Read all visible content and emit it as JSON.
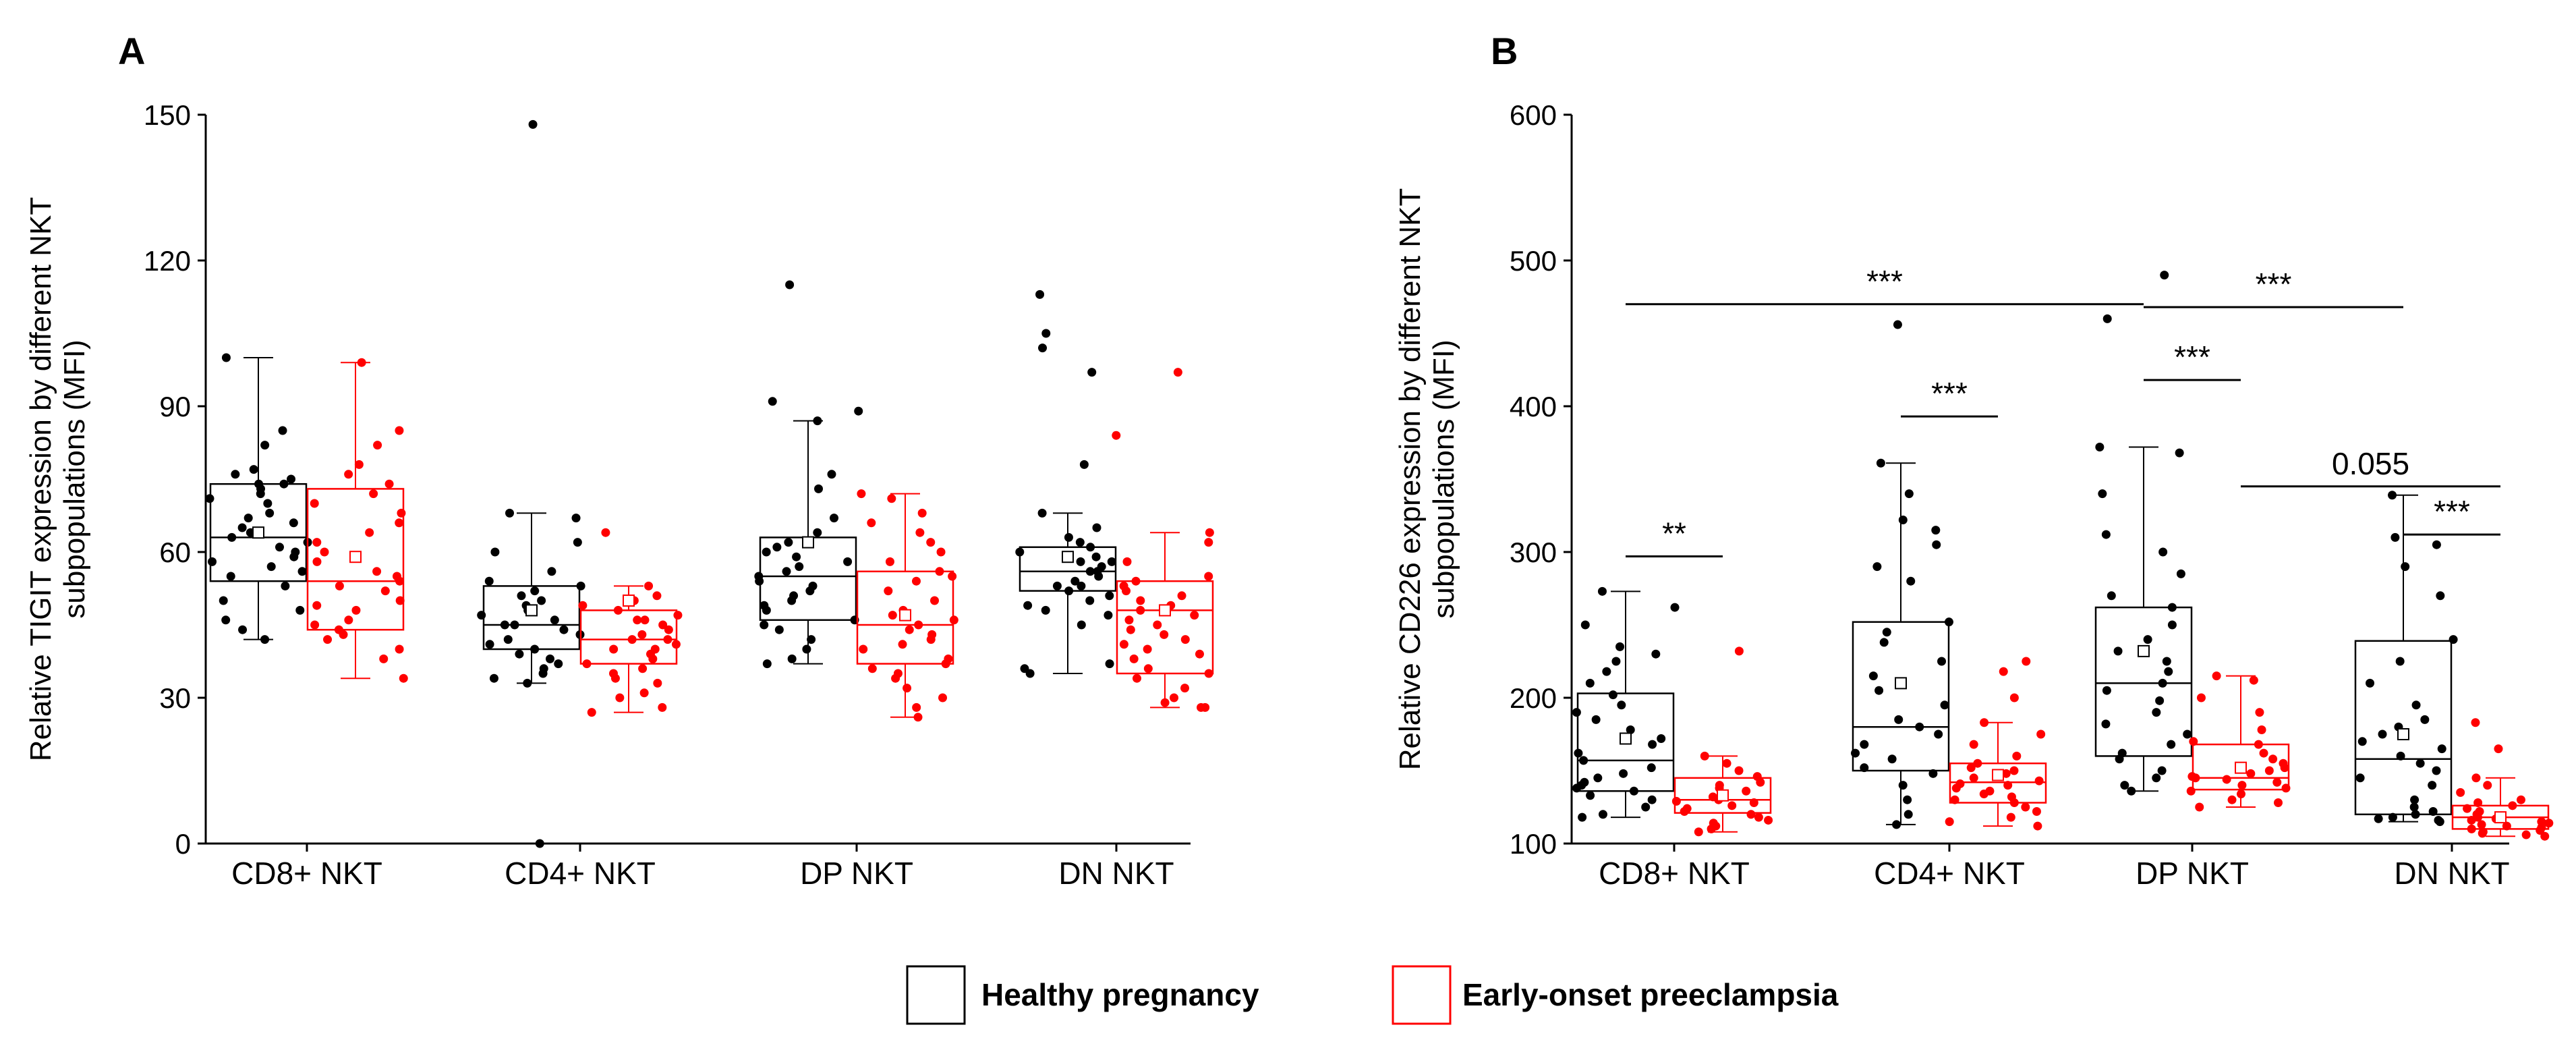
{
  "colors": {
    "healthy": "#000000",
    "preeclampsia": "#ff0000"
  },
  "legend": [
    {
      "label": "Healthy pregnancy",
      "color": "#000000"
    },
    {
      "label": "Early-onset preeclampsia",
      "color": "#ff0000"
    }
  ],
  "chart_data": [
    {
      "type": "box",
      "panel": "A",
      "ylabel": [
        "Relative TIGIT  expression by different NKT",
        "subpopulations (MFI)"
      ],
      "ylim": [
        0,
        150
      ],
      "yticks": [
        0,
        30,
        60,
        90,
        120,
        150
      ],
      "categories": [
        "CD8+ NKT",
        "CD4+ NKT",
        "DP NKT",
        "DN NKT"
      ],
      "series": [
        {
          "name": "Healthy pregnancy",
          "color": "#000000",
          "boxes": [
            {
              "min": 42,
              "q1": 54,
              "median": 63,
              "q3": 74,
              "max": 100,
              "mean": 64,
              "points": [
                100,
                85,
                82,
                77,
                76,
                75,
                74,
                74,
                73,
                72,
                71,
                70,
                68,
                67,
                66,
                65,
                64,
                63,
                62,
                61,
                60,
                59,
                58,
                57,
                56,
                55,
                53,
                50,
                48,
                46,
                44,
                42
              ]
            },
            {
              "min": 33,
              "q1": 40,
              "median": 45,
              "q3": 53,
              "max": 68,
              "mean": 48,
              "points": [
                148,
                68,
                67,
                62,
                60,
                56,
                54,
                53,
                52,
                51,
                50,
                49,
                48,
                47,
                46,
                45,
                45,
                44,
                43,
                42,
                41,
                40,
                39,
                38,
                37,
                36,
                35,
                34,
                33,
                0
              ]
            },
            {
              "min": 37,
              "q1": 46,
              "median": 55,
              "q3": 63,
              "max": 87,
              "mean": 62,
              "points": [
                115,
                91,
                89,
                87,
                76,
                73,
                67,
                64,
                62,
                61,
                60,
                59,
                58,
                57,
                56,
                55,
                54,
                53,
                52,
                51,
                50,
                49,
                48,
                46,
                45,
                44,
                42,
                40,
                38,
                37
              ]
            },
            {
              "min": 35,
              "q1": 52,
              "median": 56,
              "q3": 61,
              "max": 68,
              "mean": 59,
              "points": [
                113,
                105,
                102,
                97,
                78,
                68,
                65,
                63,
                62,
                61,
                60,
                59,
                58,
                58,
                57,
                56,
                56,
                55,
                54,
                53,
                53,
                52,
                51,
                50,
                49,
                48,
                47,
                45,
                37,
                36,
                35
              ]
            }
          ]
        },
        {
          "name": "Early-onset preeclampsia",
          "color": "#ff0000",
          "boxes": [
            {
              "min": 34,
              "q1": 44,
              "median": 54,
              "q3": 73,
              "max": 99,
              "mean": 59,
              "points": [
                99,
                85,
                82,
                78,
                76,
                74,
                72,
                70,
                68,
                66,
                64,
                62,
                60,
                58,
                56,
                55,
                54,
                53,
                52,
                50,
                49,
                48,
                46,
                45,
                44,
                43,
                42,
                40,
                38,
                34
              ]
            },
            {
              "min": 27,
              "q1": 37,
              "median": 42,
              "q3": 48,
              "max": 53,
              "mean": 50,
              "points": [
                64,
                53,
                51,
                50,
                49,
                48,
                47,
                46,
                46,
                45,
                44,
                43,
                42,
                42,
                41,
                40,
                40,
                39,
                38,
                37,
                36,
                35,
                34,
                33,
                31,
                30,
                28,
                27
              ]
            },
            {
              "min": 26,
              "q1": 37,
              "median": 45,
              "q3": 56,
              "max": 72,
              "mean": 47,
              "points": [
                72,
                71,
                68,
                66,
                64,
                62,
                60,
                58,
                56,
                55,
                54,
                52,
                50,
                48,
                47,
                46,
                45,
                44,
                43,
                42,
                41,
                40,
                38,
                37,
                36,
                35,
                34,
                32,
                30,
                28,
                26
              ]
            },
            {
              "min": 28,
              "q1": 35,
              "median": 48,
              "q3": 54,
              "max": 64,
              "mean": 48,
              "points": [
                97,
                84,
                64,
                62,
                58,
                55,
                54,
                53,
                52,
                51,
                50,
                49,
                48,
                47,
                46,
                45,
                44,
                43,
                42,
                41,
                40,
                39,
                38,
                36,
                35,
                34,
                32,
                30,
                29,
                28,
                28
              ]
            }
          ]
        }
      ],
      "annotations": []
    },
    {
      "type": "box",
      "panel": "B",
      "ylabel": [
        "Relative CD226 expression by different NKT",
        "subpopulations (MFI)"
      ],
      "ylim": [
        100,
        600
      ],
      "yticks": [
        100,
        200,
        300,
        400,
        500,
        600
      ],
      "categories": [
        "CD8+ NKT",
        "CD4+ NKT",
        "DP NKT",
        "DN NKT"
      ],
      "series": [
        {
          "name": "Healthy pregnancy",
          "color": "#000000",
          "boxes": [
            {
              "min": 118,
              "q1": 136,
              "median": 157,
              "q3": 203,
              "max": 273,
              "mean": 172,
              "points": [
                273,
                262,
                250,
                235,
                230,
                225,
                218,
                210,
                202,
                195,
                190,
                185,
                178,
                172,
                168,
                162,
                157,
                152,
                148,
                145,
                142,
                140,
                138,
                136,
                133,
                130,
                125,
                120,
                118
              ]
            },
            {
              "min": 113,
              "q1": 150,
              "median": 180,
              "q3": 252,
              "max": 361,
              "mean": 210,
              "points": [
                456,
                361,
                340,
                322,
                315,
                305,
                290,
                280,
                252,
                245,
                238,
                225,
                215,
                205,
                195,
                185,
                180,
                175,
                168,
                162,
                158,
                152,
                148,
                140,
                130,
                120,
                113
              ]
            },
            {
              "min": 136,
              "q1": 160,
              "median": 210,
              "q3": 262,
              "max": 372,
              "mean": 232,
              "points": [
                490,
                460,
                372,
                368,
                340,
                312,
                300,
                285,
                270,
                262,
                250,
                240,
                232,
                225,
                218,
                210,
                205,
                198,
                190,
                182,
                175,
                168,
                162,
                158,
                150,
                145,
                140,
                136
              ]
            },
            {
              "min": 115,
              "q1": 120,
              "median": 158,
              "q3": 239,
              "max": 339,
              "mean": 175,
              "points": [
                339,
                310,
                305,
                290,
                270,
                240,
                225,
                210,
                195,
                185,
                180,
                175,
                170,
                165,
                160,
                155,
                150,
                145,
                140,
                130,
                125,
                122,
                120,
                118,
                117,
                116,
                115
              ]
            }
          ]
        },
        {
          "name": "Early-onset preeclampsia",
          "color": "#ff0000",
          "boxes": [
            {
              "min": 108,
              "q1": 121,
              "median": 130,
              "q3": 145,
              "max": 160,
              "mean": 133,
              "points": [
                232,
                160,
                155,
                150,
                146,
                142,
                140,
                138,
                136,
                134,
                132,
                130,
                129,
                128,
                126,
                124,
                122,
                120,
                118,
                116,
                114,
                112,
                110,
                108
              ]
            },
            {
              "min": 112,
              "q1": 128,
              "median": 142,
              "q3": 155,
              "max": 183,
              "mean": 147,
              "points": [
                225,
                218,
                200,
                183,
                175,
                168,
                160,
                155,
                152,
                150,
                148,
                145,
                143,
                141,
                140,
                138,
                136,
                134,
                132,
                130,
                128,
                125,
                122,
                118,
                115,
                112
              ]
            },
            {
              "min": 125,
              "q1": 137,
              "median": 145,
              "q3": 168,
              "max": 215,
              "mean": 152,
              "points": [
                215,
                212,
                200,
                190,
                178,
                170,
                168,
                162,
                158,
                155,
                152,
                150,
                148,
                146,
                145,
                144,
                142,
                140,
                138,
                136,
                134,
                130,
                128,
                125
              ]
            },
            {
              "min": 105,
              "q1": 110,
              "median": 118,
              "q3": 126,
              "max": 145,
              "mean": 118,
              "points": [
                183,
                165,
                145,
                140,
                135,
                130,
                128,
                126,
                124,
                122,
                120,
                118,
                117,
                116,
                115,
                114,
                113,
                112,
                111,
                110,
                109,
                108,
                107,
                106,
                105
              ]
            }
          ]
        }
      ],
      "annotations": [
        {
          "label": "***",
          "from": 0,
          "to": 2,
          "level": 470
        },
        {
          "label": "***",
          "from": 2,
          "to": 3,
          "level": 468
        },
        {
          "label": "***",
          "from": 2,
          "to": 2.5,
          "level": 418
        },
        {
          "label": "0.055",
          "from": 2.5,
          "to": 3.5,
          "level": 345
        },
        {
          "label": "***",
          "from": 1,
          "to": 1.5,
          "level": 393
        },
        {
          "label": "***",
          "from": 3,
          "to": 3.5,
          "level": 312
        },
        {
          "label": "**",
          "from": 0,
          "to": 0.5,
          "level": 297
        }
      ]
    }
  ]
}
